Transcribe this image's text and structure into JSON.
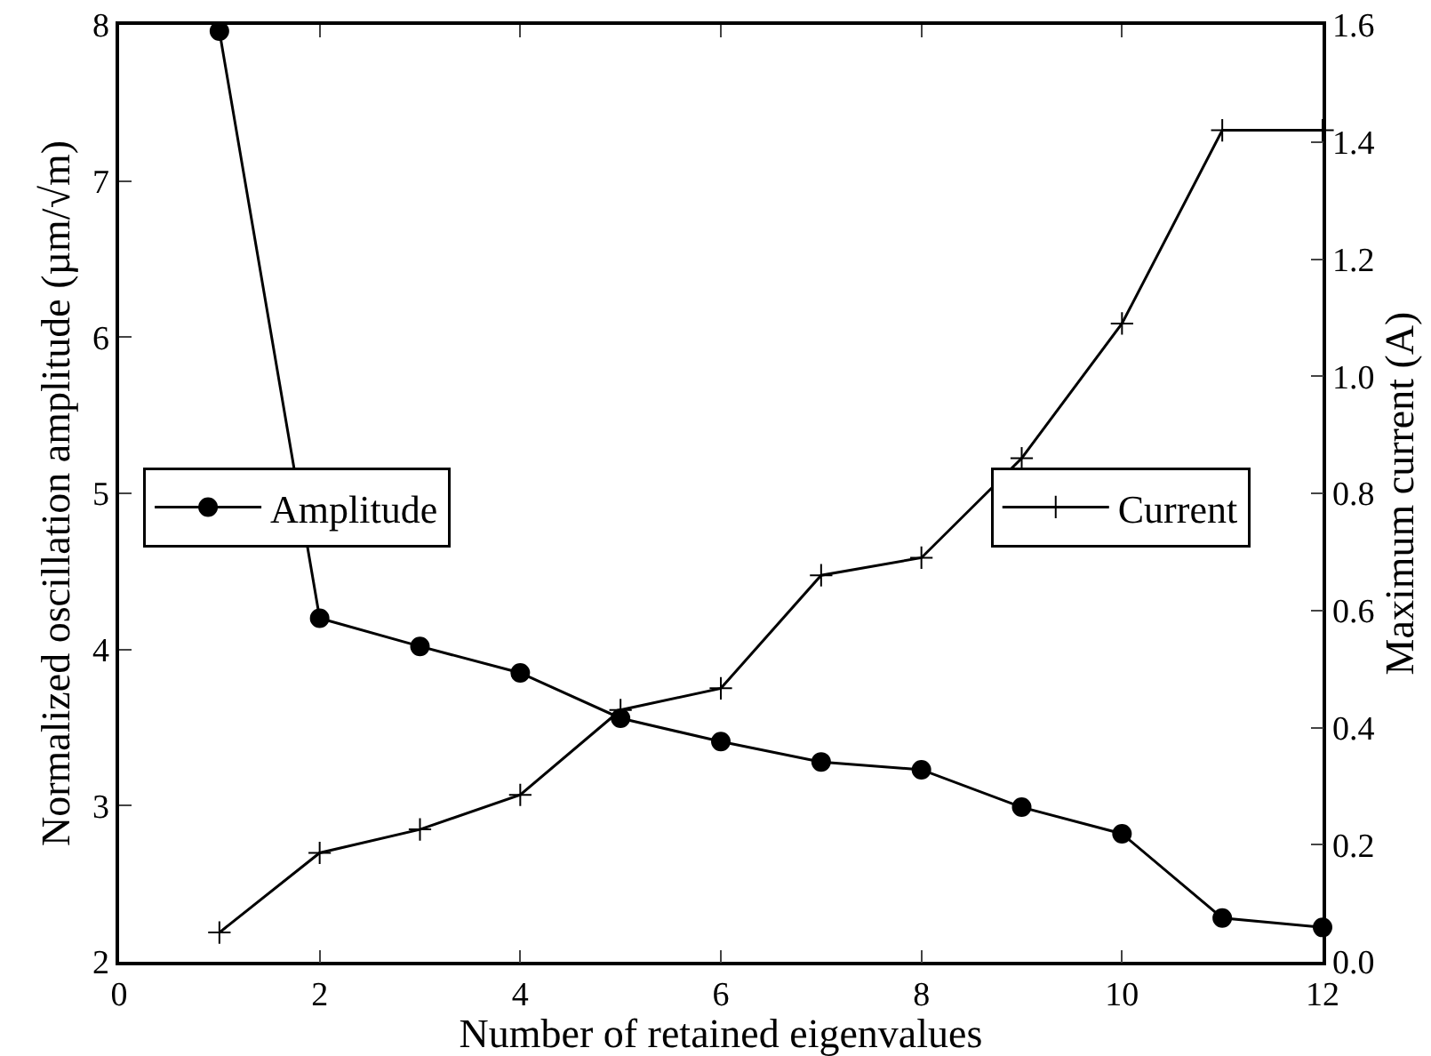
{
  "chart_data": {
    "type": "line",
    "xlabel": "Number of retained eigenvalues",
    "ylabel": "Normalized oscillation amplitude (µm/√m)",
    "y2label": "Maximum current (A)",
    "x": [
      1,
      2,
      3,
      4,
      5,
      6,
      7,
      8,
      9,
      10,
      11,
      12
    ],
    "xlim": [
      0,
      12
    ],
    "xticks": [
      0,
      2,
      4,
      6,
      8,
      10,
      12
    ],
    "ylim": [
      2,
      8
    ],
    "yticks": [
      2,
      3,
      4,
      5,
      6,
      7,
      8
    ],
    "y2lim": [
      0,
      1.6
    ],
    "y2ticks": [
      {
        "value": 0,
        "label": "0.0"
      },
      0.2,
      0.4,
      0.6,
      0.8,
      {
        "value": 1,
        "label": "1.0"
      },
      1.2,
      1.4,
      1.6
    ],
    "grid": false,
    "legend": "left",
    "series": [
      {
        "name": "Amplitude",
        "color": "#000000",
        "marker": "circle",
        "values": [
          7.96,
          4.2,
          4.02,
          3.85,
          3.56,
          3.41,
          3.28,
          3.23,
          2.99,
          2.82,
          2.28,
          2.22
        ]
      },
      {
        "name": "Current",
        "color": "#000000",
        "marker": "cross",
        "axis": "y2",
        "values": [
          0.05,
          0.186,
          0.226,
          0.285,
          0.43,
          0.467,
          0.66,
          0.69,
          0.86,
          1.09,
          1.42,
          1.42
        ]
      }
    ]
  }
}
